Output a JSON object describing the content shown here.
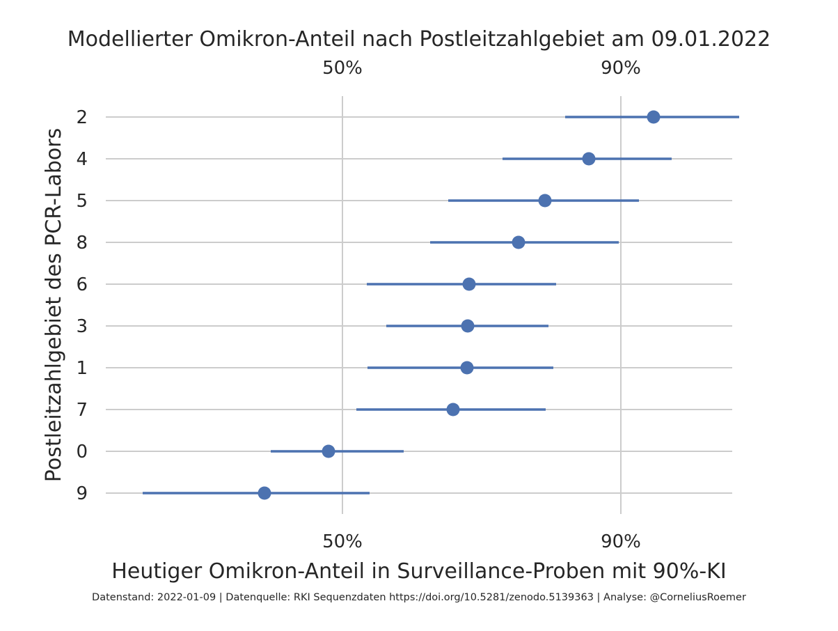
{
  "chart_data": {
    "type": "scatter",
    "title": "Modellierter Omikron-Anteil nach Postleitzahlgebiet am 09.01.2022",
    "xlabel": "Heutiger Omikron-Anteil in Surveillance-Proben mit 90%-KI",
    "ylabel": "Postleitzahlgebiet des PCR-Labors",
    "x_ticks": [
      "50%",
      "90%"
    ],
    "x_tick_values": [
      50,
      90
    ],
    "xlim": [
      16,
      106
    ],
    "grid": true,
    "categories": [
      "2",
      "4",
      "5",
      "8",
      "6",
      "3",
      "1",
      "7",
      "0",
      "9"
    ],
    "series": [
      {
        "values": [
          94.7,
          85.4,
          79.1,
          75.3,
          68.2,
          68.0,
          67.9,
          65.9,
          48.0,
          38.8
        ],
        "lower": [
          82.0,
          73.0,
          65.2,
          62.6,
          53.5,
          56.3,
          53.6,
          52.0,
          39.7,
          21.3
        ],
        "upper": [
          107.0,
          97.3,
          92.6,
          89.7,
          80.7,
          79.6,
          80.3,
          79.2,
          58.8,
          53.9
        ],
        "color": "#4c72b0"
      }
    ],
    "footer": "Datenstand: 2022-01-09 | Datenquelle: RKI Sequenzdaten https://doi.org/10.5281/zenodo.5139363 | Analyse: @CorneliusRoemer"
  }
}
